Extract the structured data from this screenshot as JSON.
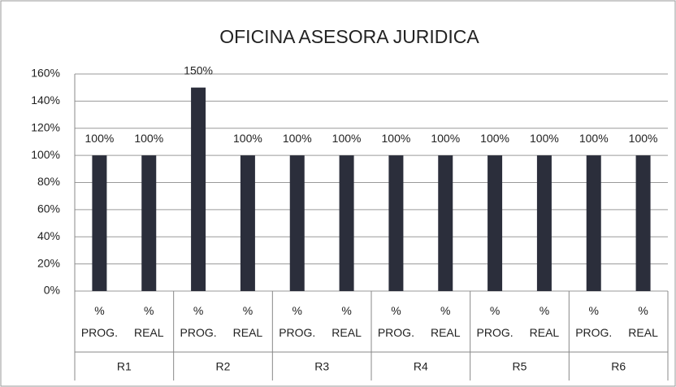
{
  "chart_data": {
    "type": "bar",
    "title": "OFICINA ASESORA JURIDICA",
    "groups": [
      "R1",
      "R2",
      "R3",
      "R4",
      "R5",
      "R6"
    ],
    "categories": [
      "% PROG.",
      "% REAL",
      "% PROG.",
      "% REAL",
      "% PROG.",
      "% REAL",
      "% PROG.",
      "% REAL",
      "% PROG.",
      "% REAL",
      "% PROG.",
      "% REAL"
    ],
    "values": [
      100,
      100,
      150,
      100,
      100,
      100,
      100,
      100,
      100,
      100,
      100,
      100
    ],
    "value_labels": [
      "100%",
      "100%",
      "150%",
      "100%",
      "100%",
      "100%",
      "100%",
      "100%",
      "100%",
      "100%",
      "100%",
      "100%"
    ],
    "color": "#2b2e3b",
    "ylim": [
      0,
      160
    ],
    "yticks": [
      {
        "value": 0,
        "label": "0%"
      },
      {
        "value": 20,
        "label": "20%"
      },
      {
        "value": 40,
        "label": "40%"
      },
      {
        "value": 60,
        "label": "60%"
      },
      {
        "value": 80,
        "label": "80%"
      },
      {
        "value": 100,
        "label": "100%"
      },
      {
        "value": 120,
        "label": "120%"
      },
      {
        "value": 140,
        "label": "140%"
      },
      {
        "value": 160,
        "label": "160%"
      }
    ],
    "grid": true
  }
}
